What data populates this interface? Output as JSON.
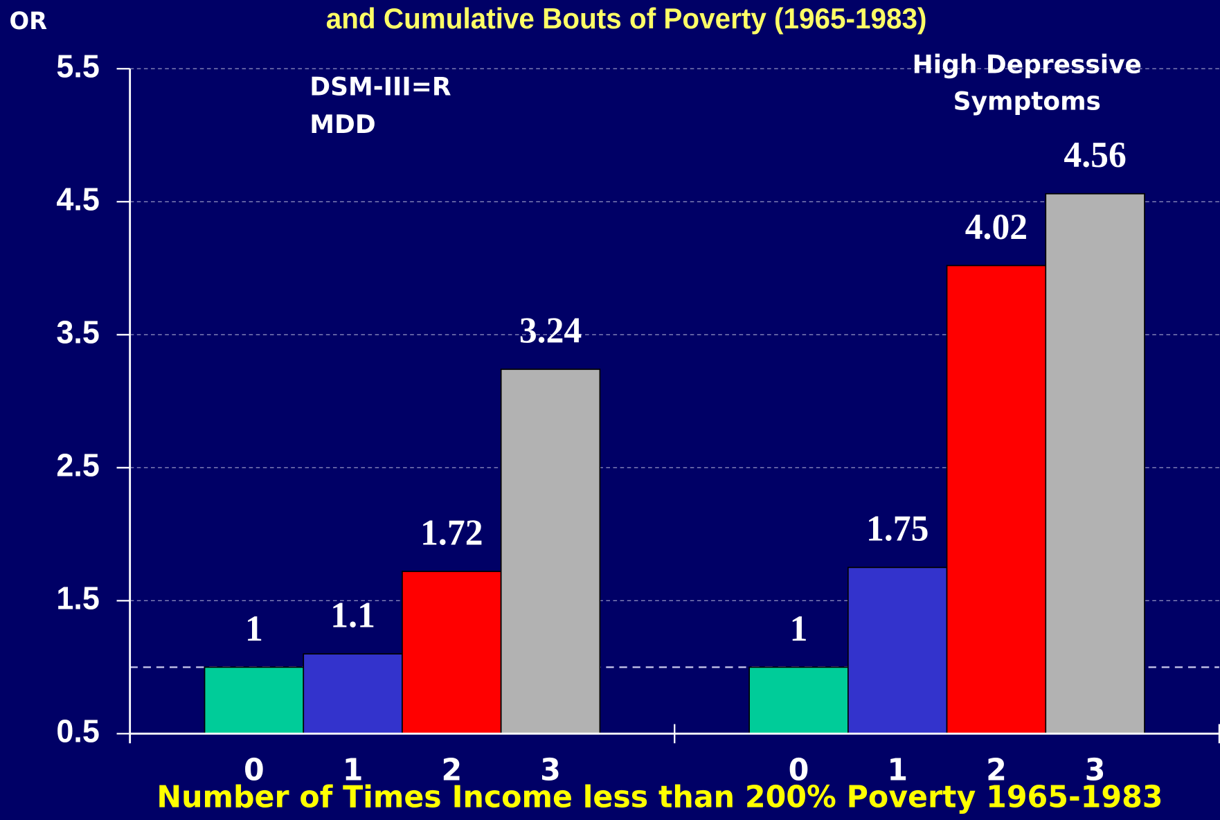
{
  "chart_data": {
    "type": "grouped-bar",
    "title": "and Cumulative Bouts of Poverty (1965-1983)",
    "y_label": "OR",
    "x_label": "Number of Times Income less than 200% Poverty 1965-1983",
    "ylim": [
      0.5,
      5.5
    ],
    "yticks": [
      0.5,
      1.5,
      2.5,
      3.5,
      4.5,
      5.5
    ],
    "grid": true,
    "reference_line": 1,
    "colors": [
      "#00cc99",
      "#3333cc",
      "#ff0000",
      "#b2b2b2"
    ],
    "groups": [
      {
        "label": [
          "DSM-III=R",
          "MDD"
        ],
        "categories": [
          "0",
          "1",
          "2",
          "3"
        ],
        "values": [
          1,
          1.1,
          1.72,
          3.24
        ]
      },
      {
        "label": [
          "High Depressive",
          "Symptoms"
        ],
        "categories": [
          "0",
          "1",
          "2",
          "3"
        ],
        "values": [
          1,
          1.75,
          4.02,
          4.56
        ]
      }
    ]
  }
}
